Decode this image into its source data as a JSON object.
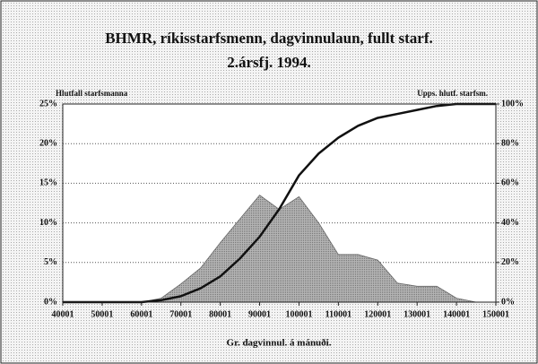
{
  "chart_data": {
    "type": "area_line",
    "title": "BHMR, ríkisstarfsmenn, dagvinnulaun, fullt starf.",
    "subtitle": "2.ársfj. 1994.",
    "xlabel": "Gr. dagvinnul. á mánuði.",
    "ylabel": "Hlutfall starfsmanna",
    "y2label": "Upps. hlutf. starfsm.",
    "x": [
      40001,
      45001,
      50001,
      55001,
      60001,
      65001,
      70001,
      75001,
      80001,
      85001,
      90001,
      95001,
      100001,
      105001,
      110001,
      115001,
      120001,
      125001,
      130001,
      135001,
      140001,
      145001,
      150001
    ],
    "series": [
      {
        "type": "area",
        "color": "#9a9a9a",
        "values": [
          0,
          0,
          0,
          0,
          0,
          0.5,
          2.3,
          4.3,
          7.5,
          10.5,
          13.5,
          11.7,
          13.3,
          10,
          6,
          6,
          5.3,
          2.4,
          2,
          2,
          0.5,
          0,
          0
        ]
      },
      {
        "type": "line",
        "axis": "y2",
        "color": "#111111",
        "values": [
          0,
          0,
          0,
          0,
          0,
          1,
          3,
          7,
          13,
          22,
          33,
          47,
          64,
          75,
          83,
          89,
          93,
          95,
          97,
          99,
          100,
          100,
          100
        ]
      }
    ],
    "xlim": [
      40001,
      150001
    ],
    "xticks": [
      40001,
      50001,
      60001,
      70001,
      80001,
      90001,
      100001,
      110001,
      120001,
      130001,
      140001,
      150001
    ],
    "ylim": [
      0,
      25
    ],
    "yticks": [
      {
        "value": 0,
        "label": "0%"
      },
      {
        "value": 5,
        "label": "5%"
      },
      {
        "value": 10,
        "label": "10%"
      },
      {
        "value": 15,
        "label": "15%"
      },
      {
        "value": 20,
        "label": "20%"
      },
      {
        "value": 25,
        "label": "25%"
      }
    ],
    "y2lim": [
      0,
      100
    ],
    "y2ticks": [
      {
        "value": 0,
        "label": "0%"
      },
      {
        "value": 20,
        "label": "20%"
      },
      {
        "value": 40,
        "label": "40%"
      },
      {
        "value": 60,
        "label": "60%"
      },
      {
        "value": 80,
        "label": "80%"
      },
      {
        "value": 100,
        "label": "100%"
      }
    ],
    "grid": true
  }
}
